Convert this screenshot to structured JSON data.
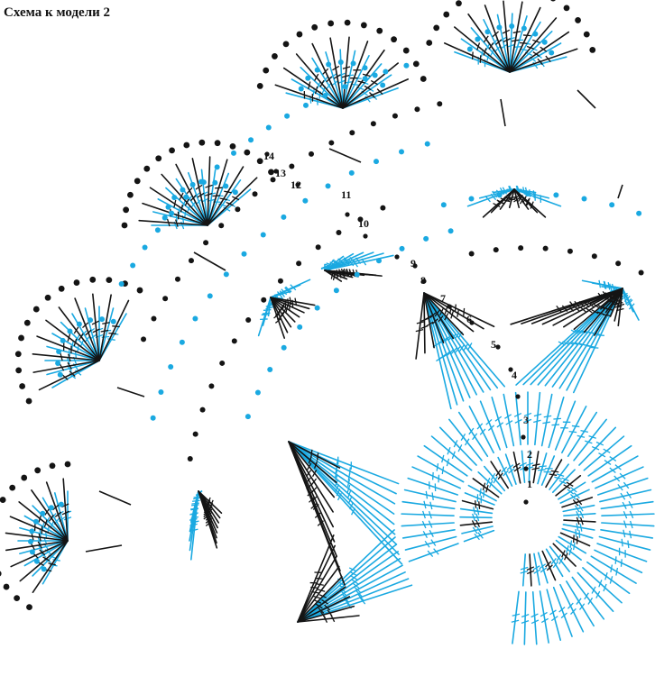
{
  "title": "Схема к модели 2",
  "round_labels": [
    "1",
    "2",
    "3",
    "4",
    "5",
    "6",
    "7",
    "8",
    "9",
    "10",
    "11",
    "12",
    "13",
    "14"
  ],
  "colors": {
    "blue": "#1aa9e1",
    "black": "#141414",
    "background": "#ffffff"
  },
  "symbols": [
    "chain-dot",
    "double-crochet-stitch",
    "single-crochet-stitch",
    "picot-loop"
  ]
}
